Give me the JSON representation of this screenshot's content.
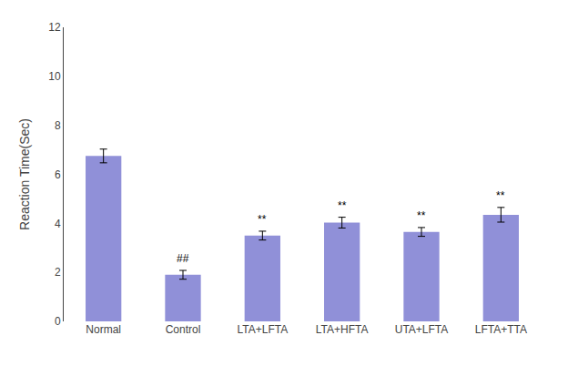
{
  "chart_data": {
    "type": "bar",
    "categories": [
      "Normal",
      "Control",
      "LTA+LFTA",
      "LTA+HFTA",
      "UTA+LFTA",
      "LFTA+TTA"
    ],
    "values": [
      6.75,
      1.9,
      3.5,
      4.03,
      3.65,
      4.35
    ],
    "errors": [
      0.28,
      0.18,
      0.18,
      0.22,
      0.18,
      0.3
    ],
    "color": "#9090D8",
    "ylabel": "Reaction Time(Sec)",
    "ylim": [
      0,
      12
    ],
    "yticks": [
      0,
      2,
      4,
      6,
      8,
      10,
      12
    ],
    "annotations": [
      null,
      "##",
      "**",
      "**",
      "**",
      "**"
    ],
    "grid": false
  }
}
